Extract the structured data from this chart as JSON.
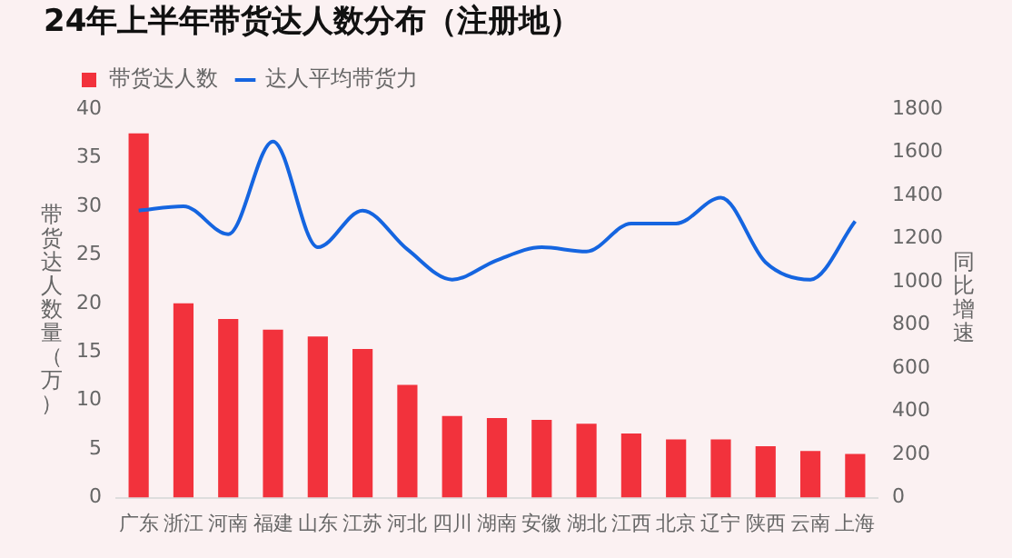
{
  "chart_data": {
    "type": "bar",
    "title": "24年上半年带货达人数分布（注册地）",
    "ylabel": "带货达人数量（万）",
    "y2label": "同比增速",
    "categories": [
      "广东",
      "浙江",
      "河南",
      "福建",
      "山东",
      "江苏",
      "河北",
      "四川",
      "湖南",
      "安徽",
      "湖北",
      "江西",
      "北京",
      "辽宁",
      "陕西",
      "云南",
      "上海"
    ],
    "series": [
      {
        "name": "带货达人数",
        "color": "#f2323c",
        "values": [
          37.5,
          20,
          18.4,
          17.3,
          16.6,
          15.3,
          11.6,
          8.4,
          8.2,
          8.0,
          7.6,
          6.6,
          6.0,
          6.0,
          5.3,
          4.8,
          4.5
        ]
      },
      {
        "name": "达人平均带货力",
        "type": "line",
        "axis": "y2",
        "color": "#1565e0",
        "values": [
          1330,
          1350,
          1220,
          1650,
          1160,
          1330,
          1150,
          1010,
          1100,
          1160,
          1140,
          1270,
          1270,
          1390,
          1090,
          1010,
          1280
        ]
      }
    ],
    "ylim": [
      0,
      40
    ],
    "yticks": [
      0,
      5,
      10,
      15,
      20,
      25,
      30,
      35,
      40
    ],
    "y2lim": [
      0,
      1800
    ],
    "y2ticks": [
      0,
      200,
      400,
      600,
      800,
      1000,
      1200,
      1400,
      1600,
      1800
    ],
    "grid": false,
    "legend": "top left",
    "marker": "none"
  }
}
